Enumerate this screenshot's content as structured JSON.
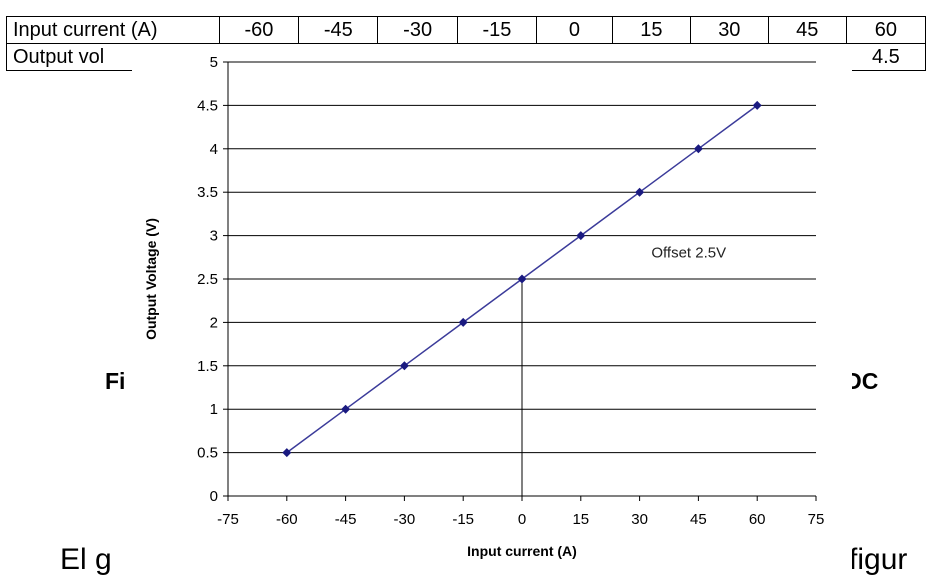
{
  "background_table": {
    "row1_header": "Input current (A)",
    "row1_values": [
      "-60",
      "-45",
      "-30",
      "-15",
      "0",
      "15",
      "30",
      "45",
      "60"
    ],
    "row2_header": "Output vol",
    "row2_last_value": "4.5"
  },
  "background_text": {
    "caption_left": "Fi",
    "caption_right": "e DC",
    "body_left": "El g",
    "body_right": "a figur"
  },
  "chart_data": {
    "type": "line",
    "xlabel": "Input current (A)",
    "ylabel": "Output Voltage (V)",
    "xlim": [
      -75,
      75
    ],
    "ylim": [
      0,
      5
    ],
    "x_ticks": [
      "-75",
      "-60",
      "-45",
      "-30",
      "-15",
      "0",
      "15",
      "30",
      "45",
      "60",
      "75"
    ],
    "y_ticks": [
      "0",
      "0.5",
      "1",
      "1.5",
      "2",
      "2.5",
      "3",
      "3.5",
      "4",
      "4.5",
      "5"
    ],
    "grid": "horizontal",
    "series": [
      {
        "x": [
          -60,
          -45,
          -30,
          -15,
          0,
          15,
          30,
          45,
          60
        ],
        "y": [
          0.5,
          1.0,
          1.5,
          2.0,
          2.5,
          3.0,
          3.5,
          4.0,
          4.5
        ]
      }
    ],
    "annotation": "Offset 2.5V",
    "annotation_anchor": {
      "x": 33,
      "y": 2.75
    },
    "reference_line_x": 0,
    "colors": {
      "line": "#3b3b9a",
      "marker": "#1a1a80",
      "grid": "#000000",
      "reference": "#000000"
    }
  }
}
